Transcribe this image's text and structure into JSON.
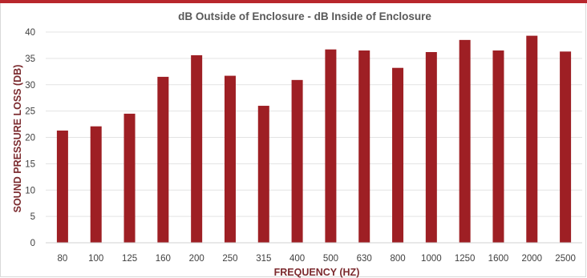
{
  "chart_data": {
    "type": "bar",
    "title": "dB Outside of Enclosure - dB Inside of Enclosure",
    "xlabel": "FREQUENCY (HZ)",
    "ylabel": "SOUND PRESSURE LOSS  (DB)",
    "categories": [
      "80",
      "100",
      "125",
      "160",
      "200",
      "250",
      "315",
      "400",
      "500",
      "630",
      "800",
      "1000",
      "1250",
      "1600",
      "2000",
      "2500"
    ],
    "values": [
      21.3,
      22.1,
      24.5,
      31.5,
      35.6,
      31.7,
      26.0,
      30.9,
      36.7,
      36.5,
      33.2,
      36.2,
      38.5,
      36.5,
      39.3,
      36.3
    ],
    "ylim": [
      0,
      40
    ],
    "yticks": [
      0,
      5,
      10,
      15,
      20,
      25,
      30,
      35,
      40
    ],
    "grid": true,
    "bar_color": "#9e1f24",
    "accent_color": "#b8272d"
  }
}
